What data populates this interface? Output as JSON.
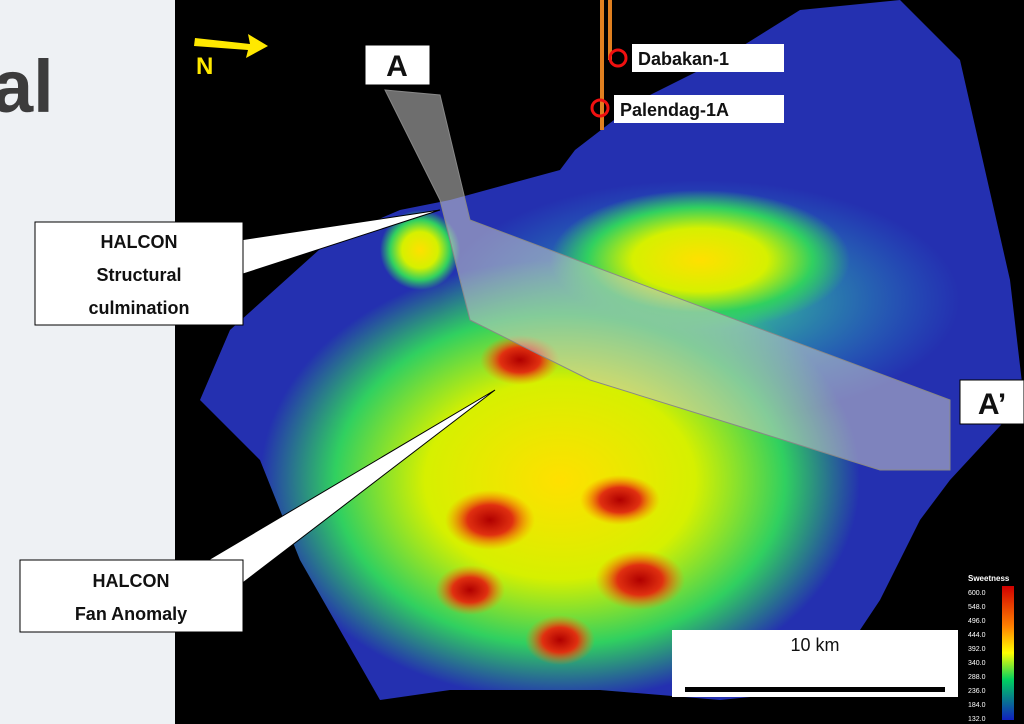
{
  "slide": {
    "title_fragment": "al"
  },
  "map": {
    "north_label": "N",
    "section_start": "A",
    "section_end": "A’",
    "wells": [
      "Dabakan-1",
      "Palendag-1A"
    ],
    "callouts": [
      {
        "lines": [
          "HALCON",
          "Structural",
          "culmination"
        ]
      },
      {
        "lines": [
          "HALCON",
          "Fan Anomaly"
        ]
      }
    ],
    "scale_bar": "10 km",
    "legend": {
      "title": "Sweetness",
      "labels": [
        "600.0",
        "548.0",
        "496.0",
        "444.0",
        "392.0",
        "340.0",
        "288.0",
        "236.0",
        "184.0",
        "132.0"
      ]
    }
  }
}
